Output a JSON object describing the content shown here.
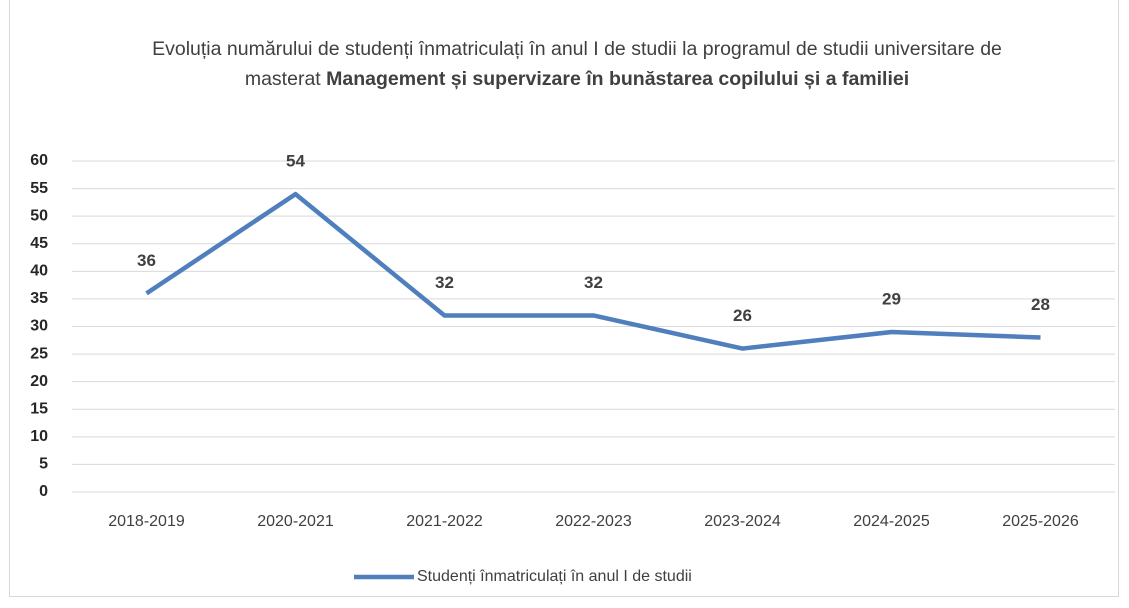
{
  "chart_data": {
    "type": "line",
    "title": [
      {
        "text": "Evoluția numărului de studenți înmatriculați în anul I de studii la programul de studii universitare de masterat",
        "bold": false
      },
      {
        "text": "Management și supervizare în bunăstarea copilului și a familiei",
        "bold": true
      }
    ],
    "categories": [
      "2018-2019",
      "2020-2021",
      "2021-2022",
      "2022-2023",
      "2023-2024",
      "2024-2025",
      "2025-2026"
    ],
    "series": [
      {
        "name": "Studenți înmatriculați în anul I de studii",
        "color": "#4f7fbc",
        "values": [
          36,
          54,
          32,
          32,
          26,
          29,
          28
        ]
      }
    ],
    "ylim": [
      0,
      60
    ],
    "yticks": [
      0,
      5,
      10,
      15,
      20,
      25,
      30,
      35,
      40,
      45,
      50,
      55,
      60
    ],
    "grid": true,
    "legend": "bottom",
    "data_labels": true
  }
}
